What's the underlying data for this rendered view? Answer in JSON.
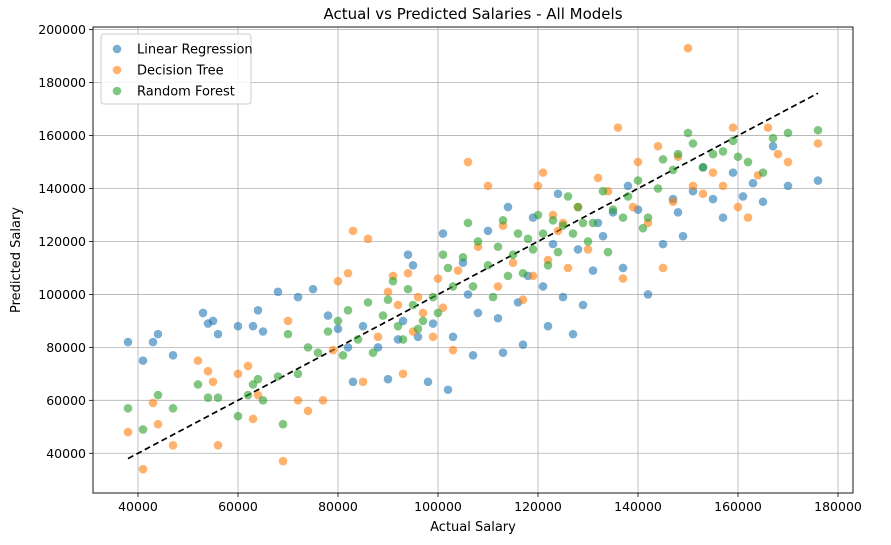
{
  "chart_data": {
    "type": "scatter",
    "title": "Actual vs Predicted Salaries - All Models",
    "xlabel": "Actual Salary",
    "ylabel": "Predicted Salary",
    "xlim": [
      31000,
      183000
    ],
    "ylim": [
      25000,
      201000
    ],
    "xticks": [
      40000,
      60000,
      80000,
      100000,
      120000,
      140000,
      160000,
      180000
    ],
    "yticks": [
      40000,
      60000,
      80000,
      100000,
      120000,
      140000,
      160000,
      180000,
      200000
    ],
    "grid": true,
    "legend_position": "top-left",
    "point_alpha": 0.6,
    "reference_line": {
      "style": "dashed",
      "color": "#000000",
      "points": [
        [
          38000,
          38000
        ],
        [
          176000,
          176000
        ]
      ]
    },
    "series": [
      {
        "name": "Linear Regression",
        "color": "#1f77b4",
        "points": [
          [
            38000,
            82000
          ],
          [
            41000,
            75000
          ],
          [
            43000,
            82000
          ],
          [
            44000,
            85000
          ],
          [
            47000,
            77000
          ],
          [
            53000,
            93000
          ],
          [
            54000,
            89000
          ],
          [
            55000,
            90000
          ],
          [
            56000,
            85000
          ],
          [
            60000,
            88000
          ],
          [
            63000,
            88000
          ],
          [
            64000,
            94000
          ],
          [
            65000,
            86000
          ],
          [
            68000,
            101000
          ],
          [
            72000,
            99000
          ],
          [
            75000,
            102000
          ],
          [
            78000,
            92000
          ],
          [
            80000,
            87000
          ],
          [
            82000,
            80000
          ],
          [
            83000,
            67000
          ],
          [
            85000,
            88000
          ],
          [
            88000,
            80000
          ],
          [
            90000,
            68000
          ],
          [
            92000,
            83000
          ],
          [
            93000,
            90000
          ],
          [
            94000,
            115000
          ],
          [
            95000,
            111000
          ],
          [
            96000,
            84000
          ],
          [
            98000,
            67000
          ],
          [
            99000,
            89000
          ],
          [
            101000,
            123000
          ],
          [
            102000,
            64000
          ],
          [
            103000,
            84000
          ],
          [
            105000,
            112000
          ],
          [
            106000,
            100000
          ],
          [
            107000,
            77000
          ],
          [
            108000,
            93000
          ],
          [
            110000,
            124000
          ],
          [
            112000,
            91000
          ],
          [
            113000,
            78000
          ],
          [
            114000,
            133000
          ],
          [
            116000,
            97000
          ],
          [
            117000,
            81000
          ],
          [
            118000,
            107000
          ],
          [
            119000,
            129000
          ],
          [
            121000,
            103000
          ],
          [
            122000,
            88000
          ],
          [
            123000,
            119000
          ],
          [
            124000,
            138000
          ],
          [
            125000,
            99000
          ],
          [
            127000,
            85000
          ],
          [
            128000,
            117000
          ],
          [
            129000,
            96000
          ],
          [
            131000,
            109000
          ],
          [
            132000,
            127000
          ],
          [
            133000,
            122000
          ],
          [
            135000,
            131000
          ],
          [
            137000,
            110000
          ],
          [
            138000,
            141000
          ],
          [
            140000,
            132000
          ],
          [
            142000,
            100000
          ],
          [
            145000,
            119000
          ],
          [
            147000,
            136000
          ],
          [
            148000,
            131000
          ],
          [
            149000,
            122000
          ],
          [
            151000,
            139000
          ],
          [
            153000,
            148000
          ],
          [
            155000,
            136000
          ],
          [
            157000,
            129000
          ],
          [
            159000,
            146000
          ],
          [
            161000,
            137000
          ],
          [
            163000,
            142000
          ],
          [
            165000,
            135000
          ],
          [
            167000,
            156000
          ],
          [
            170000,
            141000
          ],
          [
            176000,
            143000
          ]
        ]
      },
      {
        "name": "Decision Tree",
        "color": "#ff7f0e",
        "points": [
          [
            38000,
            48000
          ],
          [
            41000,
            34000
          ],
          [
            43000,
            59000
          ],
          [
            44000,
            51000
          ],
          [
            47000,
            43000
          ],
          [
            52000,
            75000
          ],
          [
            54000,
            71000
          ],
          [
            55000,
            67000
          ],
          [
            56000,
            43000
          ],
          [
            60000,
            70000
          ],
          [
            62000,
            73000
          ],
          [
            63000,
            53000
          ],
          [
            64000,
            62000
          ],
          [
            69000,
            37000
          ],
          [
            70000,
            90000
          ],
          [
            72000,
            60000
          ],
          [
            74000,
            56000
          ],
          [
            77000,
            60000
          ],
          [
            79000,
            79000
          ],
          [
            80000,
            105000
          ],
          [
            82000,
            108000
          ],
          [
            83000,
            124000
          ],
          [
            85000,
            67000
          ],
          [
            86000,
            121000
          ],
          [
            88000,
            84000
          ],
          [
            90000,
            101000
          ],
          [
            91000,
            107000
          ],
          [
            92000,
            96000
          ],
          [
            93000,
            70000
          ],
          [
            94000,
            108000
          ],
          [
            95000,
            86000
          ],
          [
            96000,
            99000
          ],
          [
            97000,
            93000
          ],
          [
            99000,
            84000
          ],
          [
            100000,
            106000
          ],
          [
            101000,
            95000
          ],
          [
            103000,
            79000
          ],
          [
            104000,
            109000
          ],
          [
            106000,
            150000
          ],
          [
            108000,
            118000
          ],
          [
            110000,
            141000
          ],
          [
            112000,
            103000
          ],
          [
            113000,
            126000
          ],
          [
            115000,
            112000
          ],
          [
            117000,
            98000
          ],
          [
            119000,
            107000
          ],
          [
            120000,
            141000
          ],
          [
            121000,
            146000
          ],
          [
            122000,
            113000
          ],
          [
            123000,
            130000
          ],
          [
            124000,
            124000
          ],
          [
            125000,
            127000
          ],
          [
            126000,
            110000
          ],
          [
            128000,
            133000
          ],
          [
            130000,
            117000
          ],
          [
            132000,
            144000
          ],
          [
            134000,
            139000
          ],
          [
            136000,
            163000
          ],
          [
            137000,
            106000
          ],
          [
            139000,
            133000
          ],
          [
            140000,
            150000
          ],
          [
            142000,
            127000
          ],
          [
            144000,
            156000
          ],
          [
            145000,
            110000
          ],
          [
            147000,
            135000
          ],
          [
            148000,
            152000
          ],
          [
            150000,
            193000
          ],
          [
            151000,
            141000
          ],
          [
            153000,
            138000
          ],
          [
            155000,
            146000
          ],
          [
            157000,
            141000
          ],
          [
            159000,
            163000
          ],
          [
            160000,
            133000
          ],
          [
            162000,
            129000
          ],
          [
            164000,
            145000
          ],
          [
            166000,
            163000
          ],
          [
            168000,
            153000
          ],
          [
            170000,
            150000
          ],
          [
            176000,
            157000
          ]
        ]
      },
      {
        "name": "Random Forest",
        "color": "#2ca02c",
        "points": [
          [
            38000,
            57000
          ],
          [
            41000,
            49000
          ],
          [
            44000,
            62000
          ],
          [
            47000,
            57000
          ],
          [
            52000,
            66000
          ],
          [
            54000,
            61000
          ],
          [
            56000,
            61000
          ],
          [
            60000,
            54000
          ],
          [
            62000,
            62000
          ],
          [
            63000,
            66000
          ],
          [
            64000,
            68000
          ],
          [
            65000,
            60000
          ],
          [
            68000,
            69000
          ],
          [
            69000,
            51000
          ],
          [
            70000,
            85000
          ],
          [
            72000,
            70000
          ],
          [
            74000,
            80000
          ],
          [
            76000,
            78000
          ],
          [
            78000,
            86000
          ],
          [
            80000,
            90000
          ],
          [
            81000,
            77000
          ],
          [
            82000,
            94000
          ],
          [
            84000,
            83000
          ],
          [
            86000,
            97000
          ],
          [
            87000,
            78000
          ],
          [
            89000,
            92000
          ],
          [
            90000,
            98000
          ],
          [
            91000,
            105000
          ],
          [
            92000,
            88000
          ],
          [
            93000,
            83000
          ],
          [
            94000,
            102000
          ],
          [
            95000,
            96000
          ],
          [
            96000,
            87000
          ],
          [
            97000,
            90000
          ],
          [
            99000,
            99000
          ],
          [
            100000,
            93000
          ],
          [
            101000,
            115000
          ],
          [
            102000,
            110000
          ],
          [
            103000,
            103000
          ],
          [
            105000,
            114000
          ],
          [
            106000,
            127000
          ],
          [
            107000,
            103000
          ],
          [
            108000,
            120000
          ],
          [
            110000,
            111000
          ],
          [
            111000,
            99000
          ],
          [
            112000,
            118000
          ],
          [
            113000,
            128000
          ],
          [
            114000,
            107000
          ],
          [
            115000,
            115000
          ],
          [
            116000,
            123000
          ],
          [
            117000,
            108000
          ],
          [
            118000,
            121000
          ],
          [
            119000,
            117000
          ],
          [
            120000,
            130000
          ],
          [
            121000,
            123000
          ],
          [
            122000,
            111000
          ],
          [
            123000,
            128000
          ],
          [
            124000,
            116000
          ],
          [
            125000,
            126000
          ],
          [
            126000,
            137000
          ],
          [
            127000,
            123000
          ],
          [
            128000,
            133000
          ],
          [
            129000,
            127000
          ],
          [
            130000,
            120000
          ],
          [
            131000,
            127000
          ],
          [
            133000,
            139000
          ],
          [
            134000,
            116000
          ],
          [
            135000,
            132000
          ],
          [
            137000,
            129000
          ],
          [
            138000,
            137000
          ],
          [
            140000,
            143000
          ],
          [
            141000,
            125000
          ],
          [
            142000,
            129000
          ],
          [
            144000,
            140000
          ],
          [
            145000,
            151000
          ],
          [
            147000,
            147000
          ],
          [
            148000,
            153000
          ],
          [
            150000,
            161000
          ],
          [
            151000,
            157000
          ],
          [
            153000,
            148000
          ],
          [
            155000,
            153000
          ],
          [
            157000,
            154000
          ],
          [
            159000,
            158000
          ],
          [
            160000,
            152000
          ],
          [
            162000,
            150000
          ],
          [
            165000,
            146000
          ],
          [
            167000,
            159000
          ],
          [
            170000,
            161000
          ],
          [
            176000,
            162000
          ]
        ]
      }
    ]
  }
}
